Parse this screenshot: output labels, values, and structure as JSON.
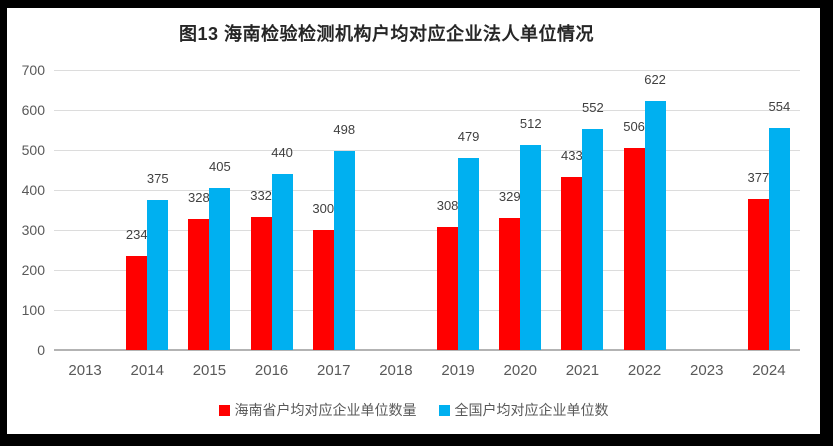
{
  "chart_data": {
    "type": "bar",
    "title": "图13 海南检验检测机构户均对应企业法人单位情况",
    "categories": [
      "2013",
      "2014",
      "2015",
      "2016",
      "2017",
      "2018",
      "2019",
      "2020",
      "2021",
      "2022",
      "2023",
      "2024"
    ],
    "series": [
      {
        "key": "hainan",
        "name": "海南省户均对应企业单位数量",
        "color": "#FF0000",
        "values": [
          null,
          234,
          328,
          332,
          300,
          null,
          308,
          329,
          433,
          506,
          null,
          377
        ]
      },
      {
        "key": "national",
        "name": "全国户均对应企业单位数",
        "color": "#00B0F0",
        "values": [
          null,
          375,
          405,
          440,
          498,
          null,
          479,
          512,
          552,
          622,
          null,
          554
        ]
      }
    ],
    "xlabel": "",
    "ylabel": "",
    "ylim": [
      0,
      700
    ],
    "yticks": [
      0,
      100,
      200,
      300,
      400,
      500,
      600,
      700
    ],
    "grid": true,
    "legend_position": "bottom",
    "colors": {
      "gridline": "#DCDCDC",
      "axis_line": "#B3B3B3",
      "tick_label": "#595959",
      "data_label": "#404040",
      "title": "#262626",
      "panel_background": "#FFFFFF",
      "frame_background": "#000000"
    }
  }
}
